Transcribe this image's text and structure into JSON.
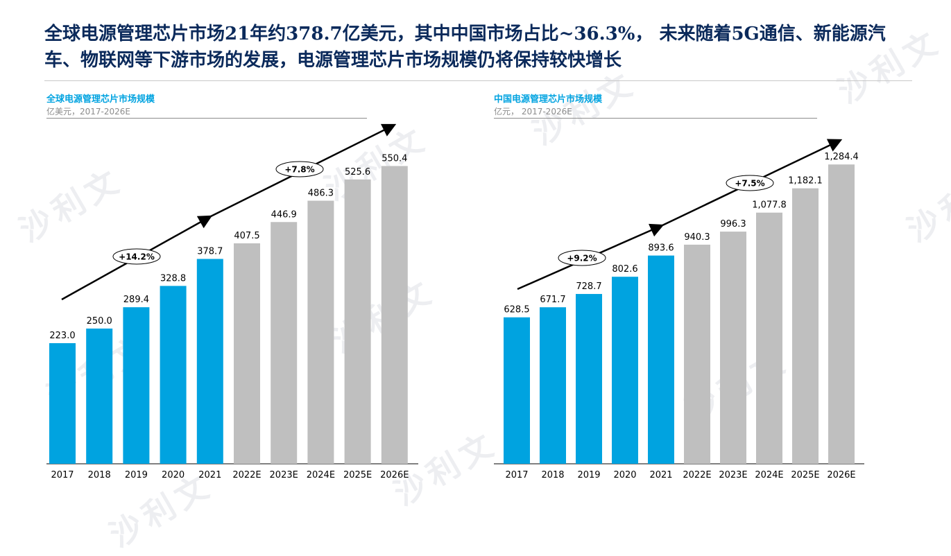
{
  "headline": "全球电源管理芯片市场21年约378.7亿美元，其中中国市场占比~36.3%， 未来随着5G通信、新能源汽车、物联网等下游市场的发展，电源管理芯片市场规模仍将保持较快增长",
  "watermark": "沙利文",
  "colors": {
    "actual": "#00a3e0",
    "forecast": "#bfbfbf",
    "title": "#0b2a5b",
    "subtitle": "#00a3e0"
  },
  "chart_data": [
    {
      "type": "bar",
      "title": "全球电源管理芯片市场规模",
      "subtitle": "亿美元，2017-2026E",
      "categories": [
        "2017",
        "2018",
        "2019",
        "2020",
        "2021",
        "2022E",
        "2023E",
        "2024E",
        "2025E",
        "2026E"
      ],
      "values": [
        223.0,
        250.0,
        289.4,
        328.8,
        378.7,
        407.5,
        446.9,
        486.3,
        525.6,
        550.4
      ],
      "labels": [
        "223.0",
        "250.0",
        "289.4",
        "328.8",
        "378.7",
        "407.5",
        "446.9",
        "486.3",
        "525.6",
        "550.4"
      ],
      "actual_count": 5,
      "cagr": [
        "+14.2%",
        "+7.8%"
      ],
      "ylim": [
        0,
        560
      ]
    },
    {
      "type": "bar",
      "title": "中国电源管理芯片市场规模",
      "subtitle": "亿元， 2017-2026E",
      "categories": [
        "2017",
        "2018",
        "2019",
        "2020",
        "2021",
        "2022E",
        "2023E",
        "2024E",
        "2025E",
        "2026E"
      ],
      "values": [
        628.5,
        671.7,
        728.7,
        802.6,
        893.6,
        940.3,
        996.3,
        1077.8,
        1182.1,
        1284.4
      ],
      "labels": [
        "628.5",
        "671.7",
        "728.7",
        "802.6",
        "893.6",
        "940.3",
        "996.3",
        "1,077.8",
        "1,182.1",
        "1,284.4"
      ],
      "actual_count": 5,
      "cagr": [
        "+9.2%",
        "+7.5%"
      ],
      "ylim": [
        0,
        1300
      ]
    }
  ]
}
